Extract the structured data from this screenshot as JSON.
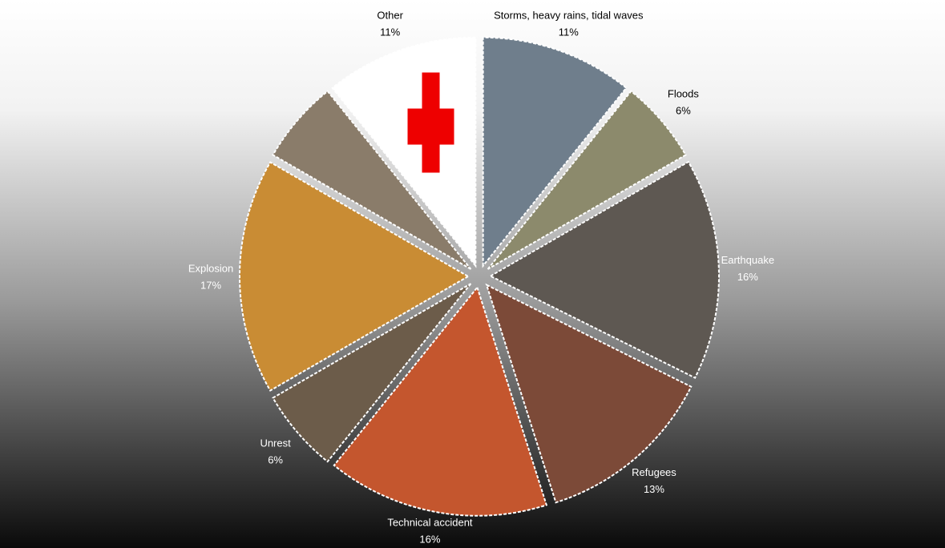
{
  "chart_data": {
    "type": "pie",
    "categories": [
      "Storms, heavy rains, tidal waves",
      "Floods",
      "Earthquake",
      "Refugees",
      "Technical accident",
      "Unrest",
      "Explosion",
      null,
      "Other"
    ],
    "values": [
      11,
      6,
      16,
      13,
      16,
      6,
      17,
      6,
      11
    ],
    "value_labels": [
      "11%",
      "6%",
      "16%",
      "13%",
      "16%",
      "6%",
      "17%",
      null,
      "11%"
    ],
    "colors": [
      "#6f7e8c",
      "#8c8a6c",
      "#5e5852",
      "#7c4a38",
      "#c4562e",
      "#6c5c4a",
      "#c98c34",
      "#8a7c6a",
      "#ffffff"
    ]
  }
}
